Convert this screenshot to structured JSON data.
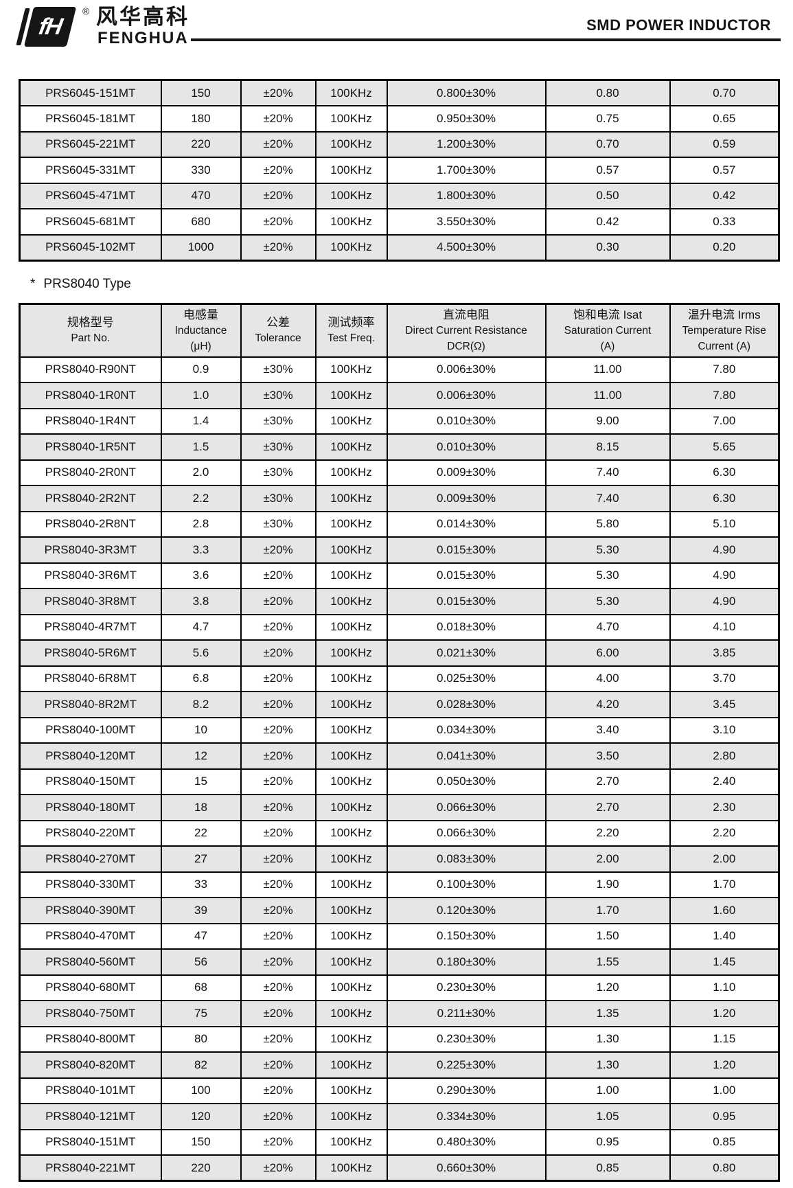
{
  "brand": {
    "chinese": "风华高科",
    "latin": "FENGHUA",
    "registered": "®",
    "mark_text": "fH"
  },
  "header": {
    "title": "SMD POWER INDUCTOR"
  },
  "colors": {
    "row_shade": "#e6e6e6",
    "border": "#000000",
    "text": "#111111"
  },
  "prs6045_table": {
    "shade_pattern": "even-indexes-shaded",
    "rows": [
      [
        "PRS6045-151MT",
        "150",
        "±20%",
        "100KHz",
        "0.800±30%",
        "0.80",
        "0.70"
      ],
      [
        "PRS6045-181MT",
        "180",
        "±20%",
        "100KHz",
        "0.950±30%",
        "0.75",
        "0.65"
      ],
      [
        "PRS6045-221MT",
        "220",
        "±20%",
        "100KHz",
        "1.200±30%",
        "0.70",
        "0.59"
      ],
      [
        "PRS6045-331MT",
        "330",
        "±20%",
        "100KHz",
        "1.700±30%",
        "0.57",
        "0.57"
      ],
      [
        "PRS6045-471MT",
        "470",
        "±20%",
        "100KHz",
        "1.800±30%",
        "0.50",
        "0.42"
      ],
      [
        "PRS6045-681MT",
        "680",
        "±20%",
        "100KHz",
        "3.550±30%",
        "0.42",
        "0.33"
      ],
      [
        "PRS6045-102MT",
        "1000",
        "±20%",
        "100KHz",
        "4.500±30%",
        "0.30",
        "0.20"
      ]
    ]
  },
  "prs8040_section": {
    "title_marker": "*",
    "title_label": "PRS8040 Type",
    "columns": [
      {
        "lines": [
          "规格型号",
          "Part No."
        ]
      },
      {
        "lines": [
          "电感量",
          "Inductance",
          "(μH)"
        ]
      },
      {
        "lines": [
          "公差",
          "Tolerance"
        ]
      },
      {
        "lines": [
          "测试频率",
          "Test Freq."
        ]
      },
      {
        "lines": [
          "直流电阻",
          "Direct Current Resistance",
          "DCR(Ω)"
        ]
      },
      {
        "lines": [
          "饱和电流  Isat",
          "Saturation Current",
          "(A)"
        ]
      },
      {
        "lines": [
          "温升电流  Irms",
          "Temperature Rise",
          "Current (A)"
        ]
      }
    ],
    "shade_pattern": "odd-indexes-shaded",
    "rows": [
      [
        "PRS8040-R90NT",
        "0.9",
        "±30%",
        "100KHz",
        "0.006±30%",
        "11.00",
        "7.80"
      ],
      [
        "PRS8040-1R0NT",
        "1.0",
        "±30%",
        "100KHz",
        "0.006±30%",
        "11.00",
        "7.80"
      ],
      [
        "PRS8040-1R4NT",
        "1.4",
        "±30%",
        "100KHz",
        "0.010±30%",
        "9.00",
        "7.00"
      ],
      [
        "PRS8040-1R5NT",
        "1.5",
        "±30%",
        "100KHz",
        "0.010±30%",
        "8.15",
        "5.65"
      ],
      [
        "PRS8040-2R0NT",
        "2.0",
        "±30%",
        "100KHz",
        "0.009±30%",
        "7.40",
        "6.30"
      ],
      [
        "PRS8040-2R2NT",
        "2.2",
        "±30%",
        "100KHz",
        "0.009±30%",
        "7.40",
        "6.30"
      ],
      [
        "PRS8040-2R8NT",
        "2.8",
        "±30%",
        "100KHz",
        "0.014±30%",
        "5.80",
        "5.10"
      ],
      [
        "PRS8040-3R3MT",
        "3.3",
        "±20%",
        "100KHz",
        "0.015±30%",
        "5.30",
        "4.90"
      ],
      [
        "PRS8040-3R6MT",
        "3.6",
        "±20%",
        "100KHz",
        "0.015±30%",
        "5.30",
        "4.90"
      ],
      [
        "PRS8040-3R8MT",
        "3.8",
        "±20%",
        "100KHz",
        "0.015±30%",
        "5.30",
        "4.90"
      ],
      [
        "PRS8040-4R7MT",
        "4.7",
        "±20%",
        "100KHz",
        "0.018±30%",
        "4.70",
        "4.10"
      ],
      [
        "PRS8040-5R6MT",
        "5.6",
        "±20%",
        "100KHz",
        "0.021±30%",
        "6.00",
        "3.85"
      ],
      [
        "PRS8040-6R8MT",
        "6.8",
        "±20%",
        "100KHz",
        "0.025±30%",
        "4.00",
        "3.70"
      ],
      [
        "PRS8040-8R2MT",
        "8.2",
        "±20%",
        "100KHz",
        "0.028±30%",
        "4.20",
        "3.45"
      ],
      [
        "PRS8040-100MT",
        "10",
        "±20%",
        "100KHz",
        "0.034±30%",
        "3.40",
        "3.10"
      ],
      [
        "PRS8040-120MT",
        "12",
        "±20%",
        "100KHz",
        "0.041±30%",
        "3.50",
        "2.80"
      ],
      [
        "PRS8040-150MT",
        "15",
        "±20%",
        "100KHz",
        "0.050±30%",
        "2.70",
        "2.40"
      ],
      [
        "PRS8040-180MT",
        "18",
        "±20%",
        "100KHz",
        "0.066±30%",
        "2.70",
        "2.30"
      ],
      [
        "PRS8040-220MT",
        "22",
        "±20%",
        "100KHz",
        "0.066±30%",
        "2.20",
        "2.20"
      ],
      [
        "PRS8040-270MT",
        "27",
        "±20%",
        "100KHz",
        "0.083±30%",
        "2.00",
        "2.00"
      ],
      [
        "PRS8040-330MT",
        "33",
        "±20%",
        "100KHz",
        "0.100±30%",
        "1.90",
        "1.70"
      ],
      [
        "PRS8040-390MT",
        "39",
        "±20%",
        "100KHz",
        "0.120±30%",
        "1.70",
        "1.60"
      ],
      [
        "PRS8040-470MT",
        "47",
        "±20%",
        "100KHz",
        "0.150±30%",
        "1.50",
        "1.40"
      ],
      [
        "PRS8040-560MT",
        "56",
        "±20%",
        "100KHz",
        "0.180±30%",
        "1.55",
        "1.45"
      ],
      [
        "PRS8040-680MT",
        "68",
        "±20%",
        "100KHz",
        "0.230±30%",
        "1.20",
        "1.10"
      ],
      [
        "PRS8040-750MT",
        "75",
        "±20%",
        "100KHz",
        "0.211±30%",
        "1.35",
        "1.20"
      ],
      [
        "PRS8040-800MT",
        "80",
        "±20%",
        "100KHz",
        "0.230±30%",
        "1.30",
        "1.15"
      ],
      [
        "PRS8040-820MT",
        "82",
        "±20%",
        "100KHz",
        "0.225±30%",
        "1.30",
        "1.20"
      ],
      [
        "PRS8040-101MT",
        "100",
        "±20%",
        "100KHz",
        "0.290±30%",
        "1.00",
        "1.00"
      ],
      [
        "PRS8040-121MT",
        "120",
        "±20%",
        "100KHz",
        "0.334±30%",
        "1.05",
        "0.95"
      ],
      [
        "PRS8040-151MT",
        "150",
        "±20%",
        "100KHz",
        "0.480±30%",
        "0.95",
        "0.85"
      ],
      [
        "PRS8040-221MT",
        "220",
        "±20%",
        "100KHz",
        "0.660±30%",
        "0.85",
        "0.80"
      ]
    ]
  }
}
